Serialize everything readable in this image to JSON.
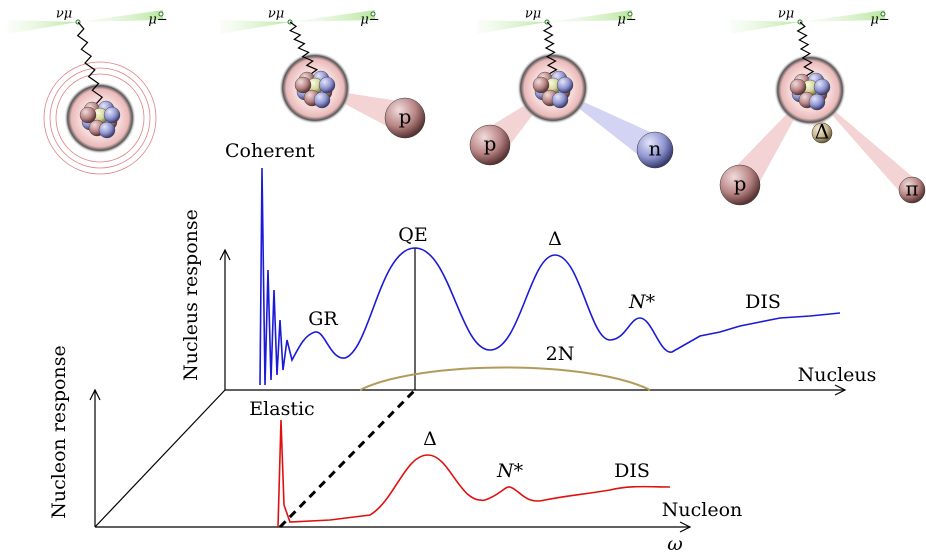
{
  "panels": [
    {
      "neutrino": "νμ",
      "muon": "μ−"
    },
    {
      "neutrino": "νμ",
      "muon": "μ−",
      "particles": [
        "p"
      ]
    },
    {
      "neutrino": "νμ",
      "muon": "μ−",
      "particles": [
        "p",
        "n"
      ]
    },
    {
      "neutrino": "νμ",
      "muon": "μ−",
      "particles": [
        "Δ",
        "p",
        "π"
      ]
    }
  ],
  "nucleus_plot": {
    "y_label": "Nucleus response",
    "x_label": "Nucleus",
    "peaks": {
      "coherent": "Coherent",
      "gr": "GR",
      "qe": "QE",
      "delta": "Δ",
      "nstar": "N*",
      "dis": "DIS",
      "two_n": "2N"
    }
  },
  "nucleon_plot": {
    "y_label": "Nucleon response",
    "x_label": "Nucleon",
    "peaks": {
      "elastic": "Elastic",
      "delta": "Δ",
      "nstar": "N*",
      "dis": "DIS"
    }
  },
  "energy_axis": "ω"
}
